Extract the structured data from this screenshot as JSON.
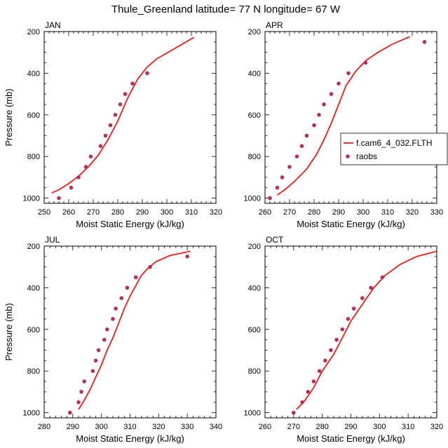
{
  "figure": {
    "title": "Thule_Greenland  latitude= 77 N longitude= 67 W"
  },
  "legend": {
    "placement": "right-middle",
    "model_label": "f.cam6_4_032.FLTH",
    "obs_label": "raobs"
  },
  "colors": {
    "model_line": "#ff0000",
    "obs_marker": "#b03060"
  },
  "chart_data": [
    {
      "type": "line",
      "panel_label": "JAN",
      "xlabel": "Moist Static Energy (kJ/kg)",
      "ylabel": "Pressure (mb)",
      "xlim": [
        250,
        320
      ],
      "ylim": [
        1025,
        200
      ],
      "y_inverted": true,
      "xticks": [
        250,
        260,
        270,
        280,
        290,
        300,
        310,
        320
      ],
      "yticks": [
        200,
        400,
        600,
        800,
        1000
      ],
      "model": [
        [
          253,
          975
        ],
        [
          256,
          960
        ],
        [
          260,
          930
        ],
        [
          264,
          895
        ],
        [
          268,
          850
        ],
        [
          272,
          795
        ],
        [
          276,
          720
        ],
        [
          280,
          630
        ],
        [
          284,
          520
        ],
        [
          288,
          430
        ],
        [
          292,
          370
        ],
        [
          296,
          330
        ],
        [
          302,
          290
        ],
        [
          311,
          228
        ]
      ],
      "raobs": [
        [
          256,
          1000
        ],
        [
          261,
          950
        ],
        [
          264,
          900
        ],
        [
          267,
          850
        ],
        [
          269,
          800
        ],
        [
          273,
          750
        ],
        [
          275,
          700
        ],
        [
          277,
          650
        ],
        [
          279,
          600
        ],
        [
          281,
          550
        ],
        [
          283,
          500
        ],
        [
          286,
          450
        ],
        [
          292,
          400
        ]
      ]
    },
    {
      "type": "line",
      "panel_label": "APR",
      "xlabel": "Moist Static Energy (kJ/kg)",
      "ylabel": "",
      "xlim": [
        260,
        330
      ],
      "ylim": [
        1025,
        200
      ],
      "y_inverted": true,
      "xticks": [
        260,
        270,
        280,
        290,
        300,
        310,
        320,
        330
      ],
      "yticks": [
        200,
        400,
        600,
        800,
        1000
      ],
      "model": [
        [
          265,
          985
        ],
        [
          268,
          960
        ],
        [
          272,
          920
        ],
        [
          277,
          860
        ],
        [
          281,
          790
        ],
        [
          284,
          720
        ],
        [
          287,
          640
        ],
        [
          290,
          550
        ],
        [
          293,
          460
        ],
        [
          297,
          390
        ],
        [
          301,
          340
        ],
        [
          306,
          300
        ],
        [
          312,
          260
        ],
        [
          319,
          225
        ]
      ],
      "raobs": [
        [
          262,
          1000
        ],
        [
          265,
          950
        ],
        [
          267,
          900
        ],
        [
          270,
          850
        ],
        [
          273,
          800
        ],
        [
          275,
          750
        ],
        [
          277,
          700
        ],
        [
          280,
          650
        ],
        [
          282,
          600
        ],
        [
          284,
          550
        ],
        [
          287,
          500
        ],
        [
          290,
          450
        ],
        [
          294,
          400
        ],
        [
          301,
          350
        ],
        [
          325,
          250
        ]
      ]
    },
    {
      "type": "line",
      "panel_label": "JUL",
      "xlabel": "Moist Static Energy (kJ/kg)",
      "ylabel": "Pressure (mb)",
      "xlim": [
        280,
        340
      ],
      "ylim": [
        1025,
        200
      ],
      "y_inverted": true,
      "xticks": [
        280,
        290,
        300,
        310,
        320,
        330,
        340
      ],
      "yticks": [
        200,
        400,
        600,
        800,
        1000
      ],
      "model": [
        [
          292,
          985
        ],
        [
          294,
          940
        ],
        [
          296,
          890
        ],
        [
          298,
          830
        ],
        [
          300,
          770
        ],
        [
          302,
          700
        ],
        [
          304,
          640
        ],
        [
          306,
          570
        ],
        [
          308,
          500
        ],
        [
          310,
          440
        ],
        [
          312,
          390
        ],
        [
          314,
          340
        ],
        [
          316,
          310
        ],
        [
          319,
          275
        ],
        [
          324,
          245
        ],
        [
          331,
          225
        ]
      ],
      "raobs": [
        [
          289,
          1000
        ],
        [
          292,
          950
        ],
        [
          293,
          900
        ],
        [
          294,
          850
        ],
        [
          297,
          800
        ],
        [
          298,
          750
        ],
        [
          299,
          700
        ],
        [
          301,
          650
        ],
        [
          302,
          600
        ],
        [
          304,
          550
        ],
        [
          305,
          500
        ],
        [
          307,
          450
        ],
        [
          309,
          400
        ],
        [
          312,
          350
        ],
        [
          317,
          300
        ],
        [
          330,
          250
        ]
      ]
    },
    {
      "type": "line",
      "panel_label": "OCT",
      "xlabel": "Moist Static Energy (kJ/kg)",
      "ylabel": "",
      "xlim": [
        260,
        320
      ],
      "ylim": [
        1025,
        200
      ],
      "y_inverted": true,
      "xticks": [
        260,
        270,
        280,
        290,
        300,
        310,
        320
      ],
      "yticks": [
        200,
        400,
        600,
        800,
        1000
      ],
      "model": [
        [
          271,
          985
        ],
        [
          274,
          940
        ],
        [
          277,
          880
        ],
        [
          280,
          800
        ],
        [
          284,
          720
        ],
        [
          287,
          640
        ],
        [
          290,
          560
        ],
        [
          294,
          480
        ],
        [
          298,
          400
        ],
        [
          302,
          340
        ],
        [
          307,
          290
        ],
        [
          313,
          250
        ],
        [
          320,
          225
        ]
      ],
      "raobs": [
        [
          270,
          1000
        ],
        [
          273,
          950
        ],
        [
          275,
          900
        ],
        [
          277,
          850
        ],
        [
          279,
          800
        ],
        [
          281,
          750
        ],
        [
          283,
          700
        ],
        [
          285,
          650
        ],
        [
          287,
          600
        ],
        [
          289,
          550
        ],
        [
          291,
          500
        ],
        [
          294,
          450
        ],
        [
          297,
          400
        ],
        [
          301,
          350
        ]
      ]
    }
  ]
}
